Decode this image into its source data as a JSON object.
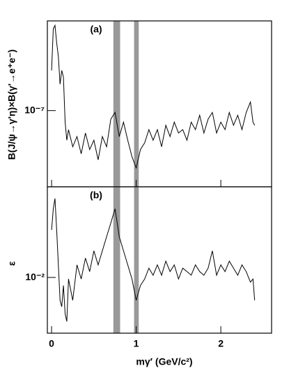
{
  "chart_data": [
    {
      "type": "line",
      "panel_label": "(a)",
      "y_label": "B(J/ψ→γ'η)×B(γ'→e⁺e⁻)",
      "log_y": true,
      "x": [
        0,
        0.02,
        0.04,
        0.06,
        0.08,
        0.1,
        0.12,
        0.14,
        0.16,
        0.18,
        0.2,
        0.25,
        0.3,
        0.35,
        0.4,
        0.45,
        0.5,
        0.55,
        0.6,
        0.65,
        0.7,
        0.75,
        0.8,
        0.85,
        0.9,
        0.95,
        1.0,
        1.05,
        1.1,
        1.15,
        1.2,
        1.25,
        1.3,
        1.35,
        1.4,
        1.45,
        1.5,
        1.55,
        1.6,
        1.65,
        1.7,
        1.75,
        1.8,
        1.85,
        1.9,
        1.95,
        2.0,
        2.05,
        2.1,
        2.15,
        2.2,
        2.25,
        2.3,
        2.35,
        2.38,
        2.4
      ],
      "series": [
        {
          "color": "#000000",
          "values": [
            1.56e-07,
            2.47e-07,
            2.57e-07,
            2.12e-07,
            1.82e-07,
            1.34e-07,
            1.56e-07,
            1.45e-07,
            8.8e-08,
            7.2e-08,
            8.1e-08,
            6.7e-08,
            7.5e-08,
            6.2e-08,
            7.8e-08,
            6.5e-08,
            7.2e-08,
            5.8e-08,
            7.5e-08,
            6.7e-08,
            9.1e-08,
            9.8e-08,
            7.5e-08,
            8.8e-08,
            7.2e-08,
            6e-08,
            5.3e-08,
            6.5e-08,
            7e-08,
            8.1e-08,
            7.2e-08,
            8.1e-08,
            6.7e-08,
            8.5e-08,
            7.5e-08,
            8.8e-08,
            7.8e-08,
            8.1e-08,
            7.2e-08,
            8.8e-08,
            8.1e-08,
            9.5e-08,
            7.8e-08,
            9.1e-08,
            9.8e-08,
            7.8e-08,
            8.8e-08,
            8.1e-08,
            9.8e-08,
            8.5e-08,
            9.5e-08,
            8.1e-08,
            9.8e-08,
            1.1e-07,
            8.8e-08,
            8.5e-08
          ]
        }
      ],
      "xlim": [
        -0.05,
        2.6
      ],
      "xticks": [
        0,
        1,
        2
      ],
      "ylim": [
        4.3e-08,
        2.7e-07
      ],
      "yticks": [
        {
          "value": 1e-07,
          "label": "10⁻⁷"
        }
      ],
      "shaded_ranges": [
        [
          0.73,
          0.81
        ],
        [
          0.975,
          1.03
        ]
      ],
      "shade_color": "#999999"
    },
    {
      "type": "line",
      "panel_label": "(b)",
      "y_label": "ε",
      "x_label": "mγ′ (GeV/c²)",
      "log_y": true,
      "x": [
        0,
        0.02,
        0.04,
        0.06,
        0.08,
        0.1,
        0.12,
        0.14,
        0.16,
        0.18,
        0.2,
        0.25,
        0.3,
        0.35,
        0.4,
        0.45,
        0.5,
        0.55,
        0.6,
        0.65,
        0.7,
        0.75,
        0.8,
        0.85,
        0.9,
        0.95,
        1.0,
        1.05,
        1.1,
        1.15,
        1.2,
        1.25,
        1.3,
        1.35,
        1.4,
        1.45,
        1.5,
        1.55,
        1.6,
        1.65,
        1.7,
        1.75,
        1.8,
        1.85,
        1.9,
        1.95,
        2.0,
        2.05,
        2.1,
        2.15,
        2.2,
        2.25,
        2.3,
        2.35,
        2.38,
        2.4
      ],
      "series": [
        {
          "color": "#000000",
          "values": [
            0.0187,
            0.0247,
            0.0283,
            0.0187,
            0.0118,
            0.0074,
            0.0068,
            0.009,
            0.0062,
            0.0056,
            0.0098,
            0.0074,
            0.0118,
            0.0098,
            0.0129,
            0.0108,
            0.0142,
            0.0118,
            0.0142,
            0.0171,
            0.0205,
            0.0247,
            0.0171,
            0.0142,
            0.0118,
            0.0098,
            0.0074,
            0.009,
            0.0098,
            0.0113,
            0.0103,
            0.0118,
            0.0103,
            0.0124,
            0.0108,
            0.0118,
            0.0098,
            0.0113,
            0.0108,
            0.0103,
            0.0118,
            0.0108,
            0.0103,
            0.0113,
            0.0142,
            0.0103,
            0.0118,
            0.0108,
            0.0124,
            0.0113,
            0.0103,
            0.0118,
            0.0108,
            0.0094,
            0.0098,
            0.0074
          ]
        }
      ],
      "xlim": [
        -0.05,
        2.6
      ],
      "xticks": [
        0,
        1,
        2
      ],
      "ylim": [
        0.0048,
        0.033
      ],
      "yticks": [
        {
          "value": 0.01,
          "label": "10⁻²"
        }
      ],
      "shaded_ranges": [
        [
          0.73,
          0.81
        ],
        [
          0.975,
          1.03
        ]
      ],
      "shade_color": "#999999"
    }
  ]
}
